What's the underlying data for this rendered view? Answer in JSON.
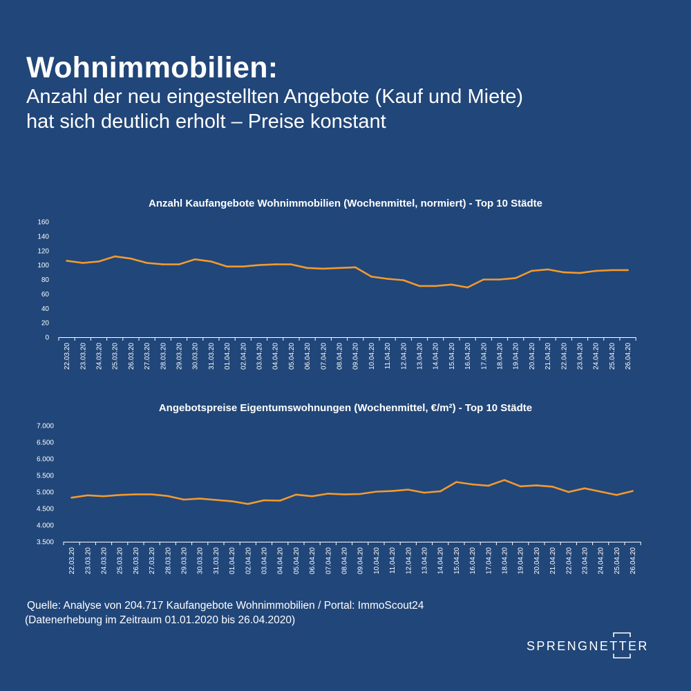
{
  "header": {
    "headline": "Wohnimmobilien:",
    "subline_1": "Anzahl der neu eingestellten Angebote (Kauf und Miete)",
    "subline_2": "hat sich deutlich erholt – Preise konstant"
  },
  "colors": {
    "background": "#214679",
    "line": "#F39A2D",
    "text": "#FFFFFF"
  },
  "chart_data": [
    {
      "type": "line",
      "title": "Anzahl Kaufangebote Wohnimmobilien (Wochenmittel, normiert) - Top 10 Städte",
      "categories": [
        "22.03.20",
        "23.03.20",
        "24.03.20",
        "25.03.20",
        "26.03.20",
        "27.03.20",
        "28.03.20",
        "29.03.20",
        "30.03.20",
        "31.03.20",
        "01.04.20",
        "02.04.20",
        "03.04.20",
        "04.04.20",
        "05.04.20",
        "06.04.20",
        "07.04.20",
        "08.04.20",
        "09.04.20",
        "10.04.20",
        "11.04.20",
        "12.04.20",
        "13.04.20",
        "14.04.20",
        "15.04.20",
        "16.04.20",
        "17.04.20",
        "18.04.20",
        "19.04.20",
        "20.04.20",
        "21.04.20",
        "22.04.20",
        "23.04.20",
        "24.04.20",
        "25.04.20",
        "26.04.20"
      ],
      "values": [
        106,
        103,
        105,
        112,
        109,
        103,
        101,
        101,
        108,
        105,
        98,
        98,
        100,
        101,
        101,
        96,
        95,
        96,
        97,
        84,
        81,
        79,
        71,
        71,
        73,
        69,
        80,
        80,
        82,
        92,
        94,
        90,
        89,
        92,
        93,
        93
      ],
      "yticks": [
        "0",
        "20",
        "40",
        "60",
        "80",
        "100",
        "120",
        "140",
        "160"
      ],
      "ylim": [
        0,
        160
      ],
      "grid": false,
      "legend": "none"
    },
    {
      "type": "line",
      "title": "Angebotspreise Eigentumswohnungen (Wochenmittel, €/m²) - Top 10 Städte",
      "categories": [
        "22.03.20",
        "23.03.20",
        "24.03.20",
        "25.03.20",
        "26.03.20",
        "27.03.20",
        "28.03.20",
        "29.03.20",
        "30.03.20",
        "31.03.20",
        "01.04.20",
        "02.04.20",
        "03.04.20",
        "04.04.20",
        "05.04.20",
        "06.04.20",
        "07.04.20",
        "08.04.20",
        "09.04.20",
        "10.04.20",
        "11.04.20",
        "12.04.20",
        "13.04.20",
        "14.04.20",
        "15.04.20",
        "16.04.20",
        "17.04.20",
        "18.04.20",
        "19.04.20",
        "20.04.20",
        "21.04.20",
        "22.04.20",
        "23.04.20",
        "24.04.20",
        "25.04.20",
        "26.04.20"
      ],
      "values": [
        4830,
        4900,
        4870,
        4910,
        4930,
        4930,
        4880,
        4770,
        4800,
        4760,
        4720,
        4640,
        4750,
        4740,
        4920,
        4870,
        4950,
        4930,
        4940,
        5010,
        5030,
        5070,
        4980,
        5020,
        5300,
        5230,
        5190,
        5360,
        5170,
        5200,
        5160,
        5000,
        5110,
        5010,
        4910,
        5030
      ],
      "yticks": [
        "3.500",
        "4.000",
        "4.500",
        "5.000",
        "5.500",
        "6.000",
        "6.500",
        "7.000"
      ],
      "ylim": [
        3500,
        7000
      ],
      "grid": false,
      "legend": "none"
    }
  ],
  "footer": {
    "source": "Quelle: Analyse von 204.717 Kaufangebote Wohnimmobilien / Portal: ImmoScout24",
    "period": "(Datenerhebung im Zeitraum 01.01.2020 bis 26.04.2020)"
  },
  "logo": {
    "text": "SPRENGNETTER"
  }
}
